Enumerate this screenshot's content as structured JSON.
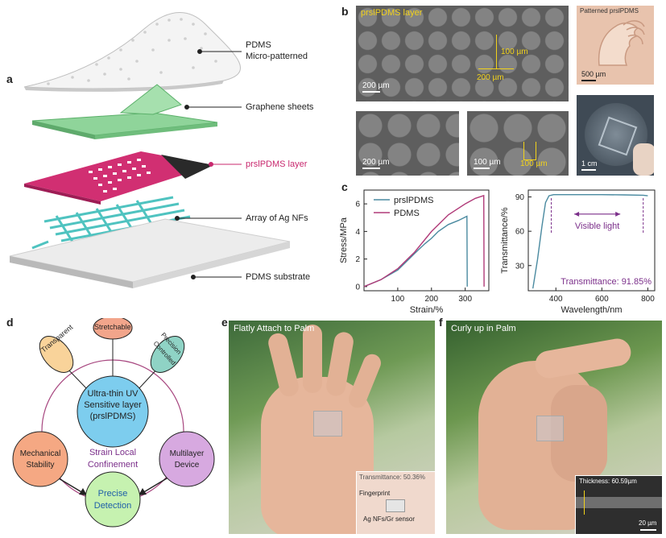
{
  "panel_letters": {
    "a": "a",
    "b": "b",
    "c": "c",
    "d": "d",
    "e": "e",
    "f": "f"
  },
  "panel_a": {
    "labels": {
      "pdms_line1": "PDMS",
      "pdms_line2": "Micro-patterned",
      "graphene": "Graphene sheets",
      "prslpdms": "prslPDMS layer",
      "agnfs": "Array of Ag NFs",
      "substrate": "PDMS substrate"
    },
    "colors": {
      "prslpdms_text": "#c8286e",
      "layer_pink": "#d12f72",
      "graphene_green": "#6ec47a",
      "ag_teal": "#4fc3c0"
    }
  },
  "panel_b": {
    "title": "prslPDMS layer",
    "inset_title": "Patterned prslPDMS",
    "scale_main": "200 µm",
    "dim_vertical": "100 µm",
    "dim_horizontal": "200 µm",
    "scale_bl": "200 µm",
    "scale_bm": "100 µm",
    "dim_bm": "100 µm",
    "scale_tr": "500 µm",
    "scale_br": "1 cm"
  },
  "panel_c": {
    "chart_data": [
      {
        "type": "line",
        "xlabel": "Strain/%",
        "ylabel": "Stress/MPa",
        "xlim": [
          0,
          370
        ],
        "ylim": [
          -0.3,
          7
        ],
        "xticks": [
          "100",
          "200",
          "300"
        ],
        "yticks": [
          "0",
          "2",
          "4",
          "6"
        ],
        "legend": "top-left",
        "series": [
          {
            "name": "prslPDMS",
            "color": "#4a8aa0",
            "x": [
              0,
              50,
              100,
              150,
              180,
              200,
              220,
              250,
              280,
              305,
              306
            ],
            "y": [
              0,
              0.5,
              1.2,
              2.4,
              3.1,
              3.5,
              4.0,
              4.5,
              4.8,
              5.1,
              0
            ]
          },
          {
            "name": "PDMS",
            "color": "#b03a78",
            "x": [
              0,
              50,
              100,
              150,
              200,
              250,
              300,
              330,
              355,
              356
            ],
            "y": [
              0,
              0.5,
              1.3,
              2.5,
              4.0,
              5.2,
              6.0,
              6.4,
              6.6,
              0
            ]
          }
        ]
      },
      {
        "type": "line",
        "xlabel": "Wavelength/nm",
        "ylabel": "Transmittance/%",
        "xlim": [
          280,
          830
        ],
        "ylim": [
          8,
          96
        ],
        "xticks": [
          "400",
          "600",
          "800"
        ],
        "yticks": [
          "30",
          "60",
          "90"
        ],
        "annotation": "Visible light",
        "value_label": "Transmittance: 91.85%",
        "annotation_range": [
          380,
          780
        ],
        "series": [
          {
            "name": "",
            "color": "#4a8aa0",
            "x": [
              300,
              320,
              340,
              355,
              370,
              390,
              420,
              500,
              600,
              700,
              780,
              800
            ],
            "y": [
              10,
              35,
              65,
              85,
              91,
              92,
              92,
              92,
              92,
              91.8,
              91.5,
              91
            ]
          }
        ]
      }
    ]
  },
  "panel_d": {
    "center": [
      "Ultra-thin UV",
      "Sensitive layer",
      "(prslPDMS)"
    ],
    "stretchable": "Stretchable",
    "transparent": "Transparent",
    "precision": [
      "Precision",
      "Controlled"
    ],
    "mechanical": [
      "Mechanical",
      "Stability"
    ],
    "multilayer": [
      "Multilayer",
      "Device"
    ],
    "strain": [
      "Strain Local",
      "Confinement"
    ],
    "precise": [
      "Precise",
      "Detection"
    ]
  },
  "panel_e": {
    "title": "Flatly Attach to Palm",
    "transmittance": "Transmittance: 50.36%",
    "fingerprint": "Fingerprint",
    "sensor": "Ag NFs/Gr sensor"
  },
  "panel_f": {
    "title": "Curly up in Palm",
    "thickness": "Thickness: 60.59µm",
    "scale": "20 µm"
  }
}
